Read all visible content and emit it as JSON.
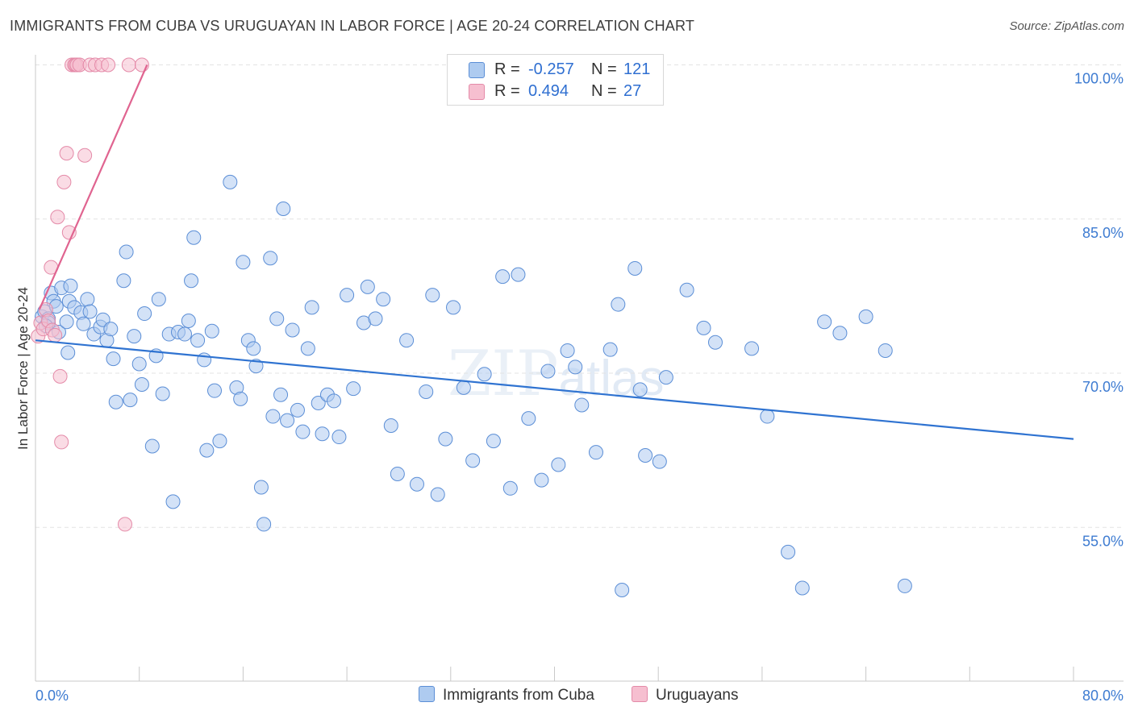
{
  "title": "IMMIGRANTS FROM CUBA VS URUGUAYAN IN LABOR FORCE | AGE 20-24 CORRELATION CHART",
  "source": "Source: ZipAtlas.com",
  "watermark": "ZIPatlas",
  "colors": {
    "cuba_fill": "#aecbf0",
    "cuba_stroke": "#5b8ed6",
    "cuba_line": "#2f73d1",
    "uru_fill": "#f6bfd0",
    "uru_stroke": "#e48aa8",
    "uru_line": "#e06490",
    "axis_text": "#3d7bd1",
    "grid": "#e3e3e3"
  },
  "legend": {
    "rows": [
      {
        "r_label": "R =",
        "r_value": "-0.257",
        "n_label": "N =",
        "n_value": "121"
      },
      {
        "r_label": "R =",
        "r_value": "0.494",
        "n_label": "N =",
        "n_value": "27"
      }
    ]
  },
  "bottom_legend": [
    {
      "label": "Immigrants from Cuba"
    },
    {
      "label": "Uruguayans"
    }
  ],
  "chart_data": {
    "type": "scatter",
    "title": "IMMIGRANTS FROM CUBA VS URUGUAYAN IN LABOR FORCE | AGE 20-24 CORRELATION CHART",
    "xlabel": "",
    "ylabel": "In Labor Force | Age 20-24",
    "xlim": [
      0,
      80
    ],
    "ylim": [
      40,
      101
    ],
    "x_tick_labels": [
      "0.0%",
      "80.0%"
    ],
    "y_ticks": [
      100,
      85,
      70,
      55
    ],
    "y_tick_labels": [
      "100.0%",
      "85.0%",
      "70.0%",
      "55.0%"
    ],
    "grid": true,
    "series": [
      {
        "name": "Immigrants from Cuba",
        "trend": {
          "r": -0.257,
          "n": 121,
          "x": [
            0,
            80
          ],
          "y": [
            73.2,
            63.6
          ]
        },
        "points": [
          [
            0.5,
            75.5
          ],
          [
            0.7,
            76.0
          ],
          [
            1.0,
            75.3
          ],
          [
            1.0,
            74.9
          ],
          [
            0.8,
            74.6
          ],
          [
            1.2,
            77.8
          ],
          [
            1.4,
            77.0
          ],
          [
            1.6,
            76.5
          ],
          [
            1.8,
            74.0
          ],
          [
            2.0,
            78.3
          ],
          [
            2.4,
            75.0
          ],
          [
            2.5,
            72.0
          ],
          [
            2.6,
            77.0
          ],
          [
            2.7,
            78.5
          ],
          [
            3.0,
            76.4
          ],
          [
            3.5,
            75.9
          ],
          [
            3.7,
            74.8
          ],
          [
            4.0,
            77.2
          ],
          [
            4.2,
            76.0
          ],
          [
            4.5,
            73.8
          ],
          [
            5.0,
            74.5
          ],
          [
            5.2,
            75.2
          ],
          [
            5.5,
            73.2
          ],
          [
            5.8,
            74.3
          ],
          [
            6.0,
            71.4
          ],
          [
            6.2,
            67.2
          ],
          [
            6.8,
            79.0
          ],
          [
            7.0,
            81.8
          ],
          [
            7.3,
            67.4
          ],
          [
            7.6,
            73.6
          ],
          [
            8.0,
            70.9
          ],
          [
            8.2,
            68.9
          ],
          [
            8.4,
            75.8
          ],
          [
            9.0,
            62.9
          ],
          [
            9.3,
            71.7
          ],
          [
            9.5,
            77.2
          ],
          [
            9.8,
            68.0
          ],
          [
            10.3,
            73.8
          ],
          [
            10.6,
            57.5
          ],
          [
            11.0,
            74.0
          ],
          [
            11.5,
            73.8
          ],
          [
            11.8,
            75.1
          ],
          [
            12.0,
            79.0
          ],
          [
            12.2,
            83.2
          ],
          [
            12.5,
            73.2
          ],
          [
            13.0,
            71.3
          ],
          [
            13.2,
            62.5
          ],
          [
            13.6,
            74.1
          ],
          [
            13.8,
            68.3
          ],
          [
            14.2,
            63.4
          ],
          [
            15.0,
            88.6
          ],
          [
            15.5,
            68.6
          ],
          [
            15.8,
            67.5
          ],
          [
            16.0,
            80.8
          ],
          [
            16.4,
            73.2
          ],
          [
            16.8,
            72.4
          ],
          [
            17.0,
            70.7
          ],
          [
            17.4,
            58.9
          ],
          [
            17.6,
            55.3
          ],
          [
            18.1,
            81.2
          ],
          [
            18.3,
            65.8
          ],
          [
            18.6,
            75.3
          ],
          [
            18.9,
            67.9
          ],
          [
            19.1,
            86.0
          ],
          [
            19.4,
            65.4
          ],
          [
            19.8,
            74.2
          ],
          [
            20.2,
            66.4
          ],
          [
            20.6,
            64.3
          ],
          [
            21.0,
            72.4
          ],
          [
            21.3,
            76.4
          ],
          [
            21.8,
            67.1
          ],
          [
            22.1,
            64.1
          ],
          [
            22.5,
            67.9
          ],
          [
            23.0,
            67.3
          ],
          [
            23.4,
            63.8
          ],
          [
            24.0,
            77.6
          ],
          [
            24.5,
            68.5
          ],
          [
            25.3,
            74.9
          ],
          [
            25.6,
            78.4
          ],
          [
            26.2,
            75.3
          ],
          [
            26.8,
            77.2
          ],
          [
            27.4,
            64.9
          ],
          [
            27.9,
            60.2
          ],
          [
            28.6,
            73.2
          ],
          [
            29.4,
            59.2
          ],
          [
            30.1,
            68.2
          ],
          [
            30.6,
            77.6
          ],
          [
            31.0,
            58.2
          ],
          [
            31.6,
            63.6
          ],
          [
            32.2,
            76.4
          ],
          [
            33.0,
            68.6
          ],
          [
            33.7,
            61.5
          ],
          [
            34.6,
            69.9
          ],
          [
            35.3,
            63.4
          ],
          [
            36.0,
            79.4
          ],
          [
            36.6,
            58.8
          ],
          [
            37.2,
            79.6
          ],
          [
            38.0,
            65.6
          ],
          [
            39.0,
            59.6
          ],
          [
            39.5,
            70.2
          ],
          [
            40.3,
            61.1
          ],
          [
            41.0,
            72.2
          ],
          [
            41.6,
            70.6
          ],
          [
            42.1,
            66.9
          ],
          [
            43.2,
            62.3
          ],
          [
            44.3,
            72.3
          ],
          [
            44.9,
            76.7
          ],
          [
            46.2,
            80.2
          ],
          [
            46.6,
            68.4
          ],
          [
            47.0,
            62.0
          ],
          [
            48.1,
            61.4
          ],
          [
            48.6,
            69.6
          ],
          [
            50.2,
            78.1
          ],
          [
            51.5,
            74.4
          ],
          [
            52.4,
            73.0
          ],
          [
            55.2,
            72.4
          ],
          [
            56.4,
            65.8
          ],
          [
            58.0,
            52.6
          ],
          [
            59.1,
            49.1
          ],
          [
            60.8,
            75.0
          ],
          [
            62.0,
            73.9
          ],
          [
            64.0,
            75.5
          ],
          [
            65.5,
            72.2
          ],
          [
            67.0,
            49.3
          ],
          [
            45.2,
            48.9
          ]
        ]
      },
      {
        "name": "Uruguayans",
        "trend": {
          "r": 0.494,
          "n": 27,
          "x": [
            0.3,
            8.6
          ],
          "y": [
            76.2,
            100
          ]
        },
        "points": [
          [
            0.2,
            73.6
          ],
          [
            0.4,
            74.9
          ],
          [
            0.6,
            74.3
          ],
          [
            0.8,
            76.2
          ],
          [
            1.0,
            75.1
          ],
          [
            1.2,
            80.3
          ],
          [
            1.3,
            74.2
          ],
          [
            1.5,
            73.7
          ],
          [
            1.7,
            85.2
          ],
          [
            1.9,
            69.7
          ],
          [
            2.0,
            63.3
          ],
          [
            2.2,
            88.6
          ],
          [
            2.4,
            91.4
          ],
          [
            2.6,
            83.7
          ],
          [
            2.8,
            100
          ],
          [
            3.0,
            100
          ],
          [
            3.1,
            100
          ],
          [
            3.2,
            100
          ],
          [
            3.4,
            100
          ],
          [
            3.8,
            91.2
          ],
          [
            4.2,
            100
          ],
          [
            4.6,
            100
          ],
          [
            5.1,
            100
          ],
          [
            5.6,
            100
          ],
          [
            6.9,
            55.3
          ],
          [
            7.2,
            100
          ],
          [
            8.2,
            100
          ]
        ]
      }
    ]
  }
}
